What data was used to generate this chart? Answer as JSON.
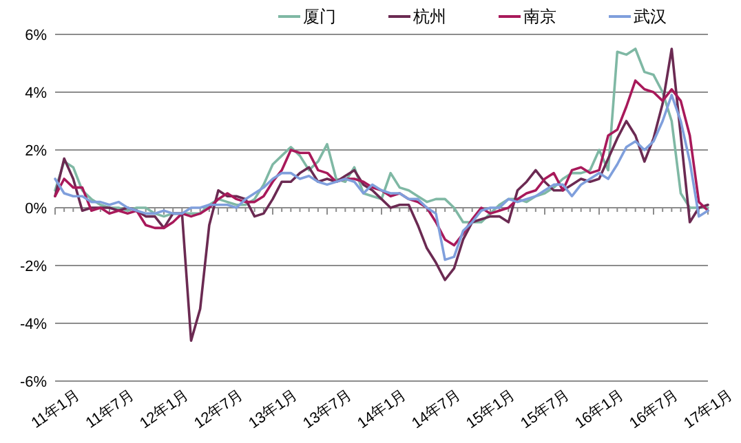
{
  "chart_data": {
    "type": "line",
    "categories": [
      "11年1月",
      null,
      null,
      null,
      null,
      null,
      "11年7月",
      null,
      null,
      null,
      null,
      null,
      "12年1月",
      null,
      null,
      null,
      null,
      null,
      "12年7月",
      null,
      null,
      null,
      null,
      null,
      "13年1月",
      null,
      null,
      null,
      null,
      null,
      "13年7月",
      null,
      null,
      null,
      null,
      null,
      "14年1月",
      null,
      null,
      null,
      null,
      null,
      "14年7月",
      null,
      null,
      null,
      null,
      null,
      "15年1月",
      null,
      null,
      null,
      null,
      null,
      "15年7月",
      null,
      null,
      null,
      null,
      null,
      "16年1月",
      null,
      null,
      null,
      null,
      null,
      "16年7月",
      null,
      null,
      null,
      null,
      null,
      "17年1月"
    ],
    "series": [
      {
        "name": "厦门",
        "color": "#7fb8a4",
        "values": [
          0.6,
          1.6,
          1.4,
          0.6,
          0.3,
          0.1,
          0.0,
          0.0,
          -0.1,
          0.0,
          0.0,
          -0.2,
          -0.3,
          -0.2,
          -0.2,
          -0.2,
          -0.2,
          0.1,
          0.3,
          0.2,
          0.1,
          0.1,
          0.3,
          0.8,
          1.5,
          1.8,
          2.1,
          1.8,
          1.3,
          1.6,
          2.2,
          1.0,
          0.9,
          1.4,
          0.5,
          0.4,
          0.3,
          1.2,
          0.7,
          0.6,
          0.4,
          0.2,
          0.3,
          0.3,
          0.0,
          -0.5,
          -0.5,
          -0.5,
          -0.2,
          0.1,
          0.3,
          0.3,
          0.2,
          0.4,
          0.5,
          0.7,
          1.0,
          1.2,
          1.2,
          1.3,
          2.0,
          1.3,
          5.4,
          5.3,
          5.5,
          4.7,
          4.6,
          4.0,
          3.0,
          0.5,
          0.0,
          0.0,
          0.0
        ]
      },
      {
        "name": "杭州",
        "color": "#6b2a52",
        "values": [
          0.4,
          1.7,
          1.0,
          -0.1,
          0.0,
          0.0,
          0.0,
          -0.1,
          0.0,
          -0.1,
          -0.3,
          -0.3,
          -0.7,
          -0.2,
          -0.2,
          -4.6,
          -3.5,
          -0.6,
          0.6,
          0.4,
          0.4,
          0.3,
          -0.3,
          -0.2,
          0.3,
          0.9,
          0.9,
          1.2,
          1.4,
          0.9,
          1.0,
          0.9,
          1.1,
          1.3,
          0.8,
          0.6,
          0.3,
          0.0,
          0.1,
          0.1,
          -0.6,
          -1.4,
          -1.9,
          -2.5,
          -2.1,
          -1.1,
          -0.5,
          -0.4,
          -0.3,
          -0.3,
          -0.5,
          0.6,
          0.9,
          1.3,
          0.9,
          0.6,
          0.6,
          0.8,
          1.0,
          0.9,
          1.0,
          1.7,
          2.4,
          3.0,
          2.5,
          1.6,
          2.4,
          3.6,
          5.5,
          2.5,
          -0.5,
          0.0,
          0.1
        ]
      },
      {
        "name": "南京",
        "color": "#a8195a",
        "values": [
          0.4,
          1.0,
          0.7,
          0.7,
          -0.1,
          0.0,
          -0.2,
          -0.1,
          -0.2,
          -0.1,
          -0.6,
          -0.7,
          -0.7,
          -0.5,
          -0.2,
          -0.3,
          -0.2,
          0.0,
          0.3,
          0.5,
          0.3,
          0.2,
          0.2,
          0.4,
          0.9,
          1.3,
          2.0,
          1.9,
          1.9,
          1.3,
          1.2,
          0.9,
          1.0,
          1.0,
          0.9,
          0.7,
          0.6,
          0.4,
          0.5,
          0.3,
          0.2,
          0.0,
          -0.5,
          -1.1,
          -1.3,
          -0.9,
          -0.4,
          0.0,
          -0.2,
          -0.1,
          0.0,
          0.3,
          0.5,
          0.6,
          1.0,
          1.2,
          0.6,
          1.3,
          1.4,
          1.2,
          1.3,
          2.5,
          2.7,
          3.5,
          4.4,
          4.1,
          4.0,
          3.7,
          4.1,
          3.7,
          2.5,
          0.2,
          -0.1
        ]
      },
      {
        "name": "武汉",
        "color": "#7f9fdc",
        "values": [
          1.0,
          0.5,
          0.4,
          0.4,
          0.2,
          0.2,
          0.1,
          0.2,
          0.0,
          -0.1,
          -0.2,
          -0.2,
          -0.1,
          -0.2,
          -0.2,
          0.0,
          0.0,
          0.1,
          0.1,
          0.1,
          0.0,
          0.3,
          0.5,
          0.7,
          1.0,
          1.2,
          1.2,
          1.0,
          1.1,
          0.9,
          0.8,
          0.9,
          1.0,
          0.9,
          0.5,
          0.8,
          0.6,
          0.5,
          0.5,
          0.3,
          0.3,
          0.0,
          -0.2,
          -1.8,
          -1.7,
          -0.8,
          -0.5,
          -0.1,
          0.0,
          0.0,
          0.3,
          0.2,
          0.3,
          0.4,
          0.6,
          0.8,
          0.8,
          0.4,
          0.8,
          1.0,
          1.2,
          1.0,
          1.5,
          2.1,
          2.3,
          2.0,
          2.3,
          3.0,
          3.9,
          3.0,
          1.6,
          -0.3,
          -0.1
        ]
      }
    ],
    "ylim": [
      -6,
      6
    ],
    "yticks": [
      {
        "value": -6,
        "label": "-6%"
      },
      {
        "value": -4,
        "label": "-4%"
      },
      {
        "value": -2,
        "label": "-2%"
      },
      {
        "value": 0,
        "label": "0%"
      },
      {
        "value": 2,
        "label": "2%"
      },
      {
        "value": 4,
        "label": "4%"
      },
      {
        "value": 6,
        "label": "6%"
      }
    ],
    "grid": "y",
    "legend": "top right",
    "line_style": "solid",
    "marker": "none"
  }
}
